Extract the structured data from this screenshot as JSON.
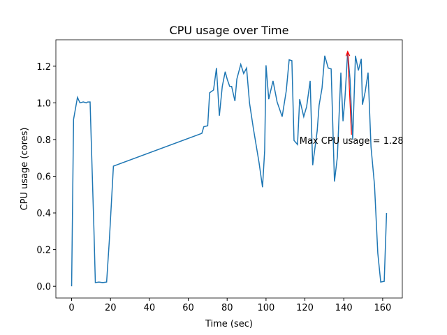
{
  "chart_data": {
    "type": "line",
    "title": "CPU usage over Time",
    "xlabel": "Time (sec)",
    "ylabel": "CPU usage (cores)",
    "x": [
      0,
      1,
      3,
      4.3,
      6,
      7.5,
      8.3,
      9.5,
      11.5,
      12.2,
      14,
      16,
      18,
      19.4,
      21.5,
      67,
      68,
      70,
      71,
      73,
      74.5,
      76,
      77.5,
      79,
      80,
      81.3,
      82.3,
      84,
      85,
      87,
      88.5,
      90,
      91.5,
      93.5,
      96.4,
      98.2,
      99.3,
      100,
      101.4,
      103.6,
      105.7,
      108.3,
      110.4,
      111.9,
      113.3,
      114.4,
      116.2,
      117.3,
      119.4,
      120.9,
      122.7,
      124,
      126.3,
      127.3,
      128.8,
      130.2,
      132,
      133.5,
      135.2,
      136.7,
      138.5,
      139.6,
      140.6,
      142,
      143.2,
      144.6,
      146,
      147.5,
      149,
      149.6,
      151,
      152.5,
      154,
      155.8,
      157.5,
      159,
      160.8,
      162
    ],
    "series": [
      {
        "name": "CPU usage",
        "color": "#1f77b4",
        "values": [
          0,
          0.91,
          1.03,
          1.0,
          1.005,
          1.0,
          1.005,
          1.005,
          0.3,
          0.02,
          0.023,
          0.02,
          0.023,
          0.25,
          0.655,
          0.834,
          0.87,
          0.875,
          1.055,
          1.07,
          1.19,
          0.93,
          1.09,
          1.17,
          1.13,
          1.09,
          1.09,
          1.01,
          1.13,
          1.21,
          1.16,
          1.19,
          1.0,
          0.86,
          0.675,
          0.54,
          0.74,
          1.205,
          1.02,
          1.12,
          1.005,
          0.925,
          1.065,
          1.235,
          1.23,
          0.795,
          0.773,
          1.02,
          0.925,
          0.98,
          1.12,
          0.66,
          0.846,
          0.987,
          1.08,
          1.257,
          1.19,
          1.185,
          0.571,
          0.705,
          1.165,
          0.9,
          1.025,
          1.28,
          1.13,
          0.8,
          1.257,
          1.177,
          1.24,
          0.99,
          1.06,
          1.165,
          0.76,
          0.552,
          0.18,
          0.023,
          0.027,
          0.4
        ]
      }
    ],
    "xlim": [
      -8.1,
      170.1
    ],
    "xticks": [
      0,
      20,
      40,
      60,
      80,
      100,
      120,
      140,
      160
    ],
    "ylim": [
      -0.064,
      1.344
    ],
    "yticks": [
      {
        "value": 0,
        "label": "0.0"
      },
      0.2,
      0.4,
      0.6,
      0.8,
      {
        "value": 1,
        "label": "1.0"
      },
      1.2
    ],
    "annotation": {
      "text": "Max CPU usage = 1.28",
      "x": 142,
      "y": 1.28,
      "text_x": 117.2,
      "text_y": 0.796,
      "color": "red"
    }
  }
}
